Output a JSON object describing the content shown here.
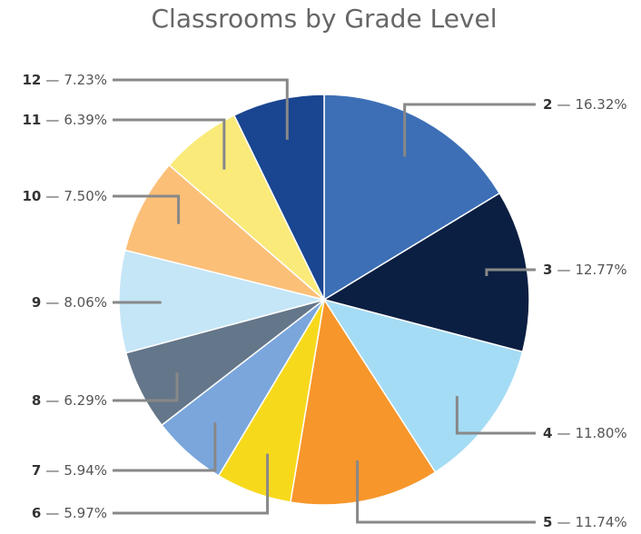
{
  "chart_data": {
    "type": "pie",
    "title": "Classrooms by Grade Level",
    "categories": [
      "2",
      "3",
      "4",
      "5",
      "6",
      "7",
      "8",
      "9",
      "10",
      "11",
      "12"
    ],
    "values": [
      16.32,
      12.77,
      11.8,
      11.74,
      5.97,
      5.94,
      6.29,
      8.06,
      7.5,
      6.39,
      7.23
    ],
    "value_labels": [
      "16.32%",
      "12.77%",
      "11.80%",
      "11.74%",
      "5.97%",
      "5.94%",
      "6.29%",
      "8.06%",
      "7.50%",
      "6.39%",
      "7.23%"
    ],
    "separator": "—",
    "colors": [
      "#3d6fb6",
      "#0b1f42",
      "#a5dcf5",
      "#f7962a",
      "#f7d91c",
      "#7aa6dc",
      "#647689",
      "#c5e6f7",
      "#fbbf78",
      "#f9ea7a",
      "#1a4590"
    ]
  }
}
